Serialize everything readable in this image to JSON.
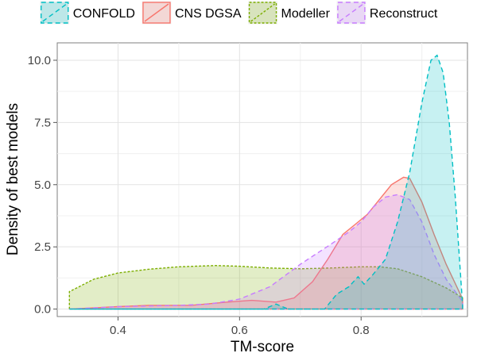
{
  "chart_data": {
    "type": "area",
    "title": "",
    "xlabel": "TM-score",
    "ylabel": "Density of best models",
    "xlim": [
      0.3,
      0.975
    ],
    "ylim": [
      -0.3,
      10.7
    ],
    "x_ticks": [
      0.4,
      0.6,
      0.8
    ],
    "x_tick_labels": [
      "0.4",
      "0.6",
      "0.8"
    ],
    "y_ticks": [
      0.0,
      2.5,
      5.0,
      7.5,
      10.0
    ],
    "y_tick_labels": [
      "0.0",
      "2.5",
      "5.0",
      "7.5",
      "10.0"
    ],
    "grid": true,
    "legend_position": "top",
    "series": [
      {
        "name": "Modeller",
        "color": "#7cae00",
        "dash": "dotted",
        "points": [
          [
            0.32,
            0.7
          ],
          [
            0.36,
            1.2
          ],
          [
            0.4,
            1.45
          ],
          [
            0.45,
            1.6
          ],
          [
            0.5,
            1.7
          ],
          [
            0.56,
            1.75
          ],
          [
            0.6,
            1.72
          ],
          [
            0.65,
            1.65
          ],
          [
            0.7,
            1.62
          ],
          [
            0.75,
            1.65
          ],
          [
            0.8,
            1.7
          ],
          [
            0.83,
            1.7
          ],
          [
            0.86,
            1.62
          ],
          [
            0.9,
            1.3
          ],
          [
            0.94,
            0.85
          ],
          [
            0.967,
            0.45
          ]
        ]
      },
      {
        "name": "CNS DGSA",
        "color": "#f8766d",
        "dash": "solid",
        "points": [
          [
            0.32,
            0.0
          ],
          [
            0.4,
            0.1
          ],
          [
            0.45,
            0.15
          ],
          [
            0.52,
            0.15
          ],
          [
            0.58,
            0.28
          ],
          [
            0.62,
            0.35
          ],
          [
            0.66,
            0.28
          ],
          [
            0.69,
            0.45
          ],
          [
            0.72,
            1.1
          ],
          [
            0.745,
            2.0
          ],
          [
            0.77,
            3.0
          ],
          [
            0.79,
            3.4
          ],
          [
            0.81,
            3.8
          ],
          [
            0.83,
            4.4
          ],
          [
            0.85,
            5.0
          ],
          [
            0.87,
            5.3
          ],
          [
            0.88,
            5.25
          ],
          [
            0.9,
            4.3
          ],
          [
            0.92,
            3.0
          ],
          [
            0.94,
            1.8
          ],
          [
            0.967,
            0.4
          ]
        ]
      },
      {
        "name": "Reconstruct",
        "color": "#c77cff",
        "dash": "dashed",
        "points": [
          [
            0.32,
            0.0
          ],
          [
            0.4,
            0.1
          ],
          [
            0.5,
            0.15
          ],
          [
            0.55,
            0.2
          ],
          [
            0.6,
            0.4
          ],
          [
            0.65,
            0.9
          ],
          [
            0.7,
            1.8
          ],
          [
            0.75,
            2.6
          ],
          [
            0.78,
            3.1
          ],
          [
            0.8,
            3.5
          ],
          [
            0.82,
            4.1
          ],
          [
            0.84,
            4.5
          ],
          [
            0.86,
            4.6
          ],
          [
            0.88,
            4.4
          ],
          [
            0.9,
            3.5
          ],
          [
            0.92,
            2.2
          ],
          [
            0.94,
            1.2
          ],
          [
            0.967,
            0.3
          ]
        ]
      },
      {
        "name": "CONFOLD",
        "color": "#00bfc4",
        "dash": "dashed",
        "points": [
          [
            0.32,
            0.0
          ],
          [
            0.6,
            0.0
          ],
          [
            0.64,
            0.0
          ],
          [
            0.66,
            0.2
          ],
          [
            0.68,
            0.0
          ],
          [
            0.74,
            0.0
          ],
          [
            0.76,
            0.6
          ],
          [
            0.78,
            0.9
          ],
          [
            0.795,
            1.3
          ],
          [
            0.805,
            1.0
          ],
          [
            0.82,
            1.4
          ],
          [
            0.84,
            2.0
          ],
          [
            0.86,
            3.5
          ],
          [
            0.88,
            5.5
          ],
          [
            0.9,
            8.3
          ],
          [
            0.915,
            10.0
          ],
          [
            0.925,
            10.2
          ],
          [
            0.935,
            9.5
          ],
          [
            0.945,
            7.5
          ],
          [
            0.955,
            4.5
          ],
          [
            0.967,
            0.15
          ]
        ]
      }
    ],
    "legend_order": [
      "CONFOLD",
      "CNS DGSA",
      "Modeller",
      "Reconstruct"
    ]
  }
}
